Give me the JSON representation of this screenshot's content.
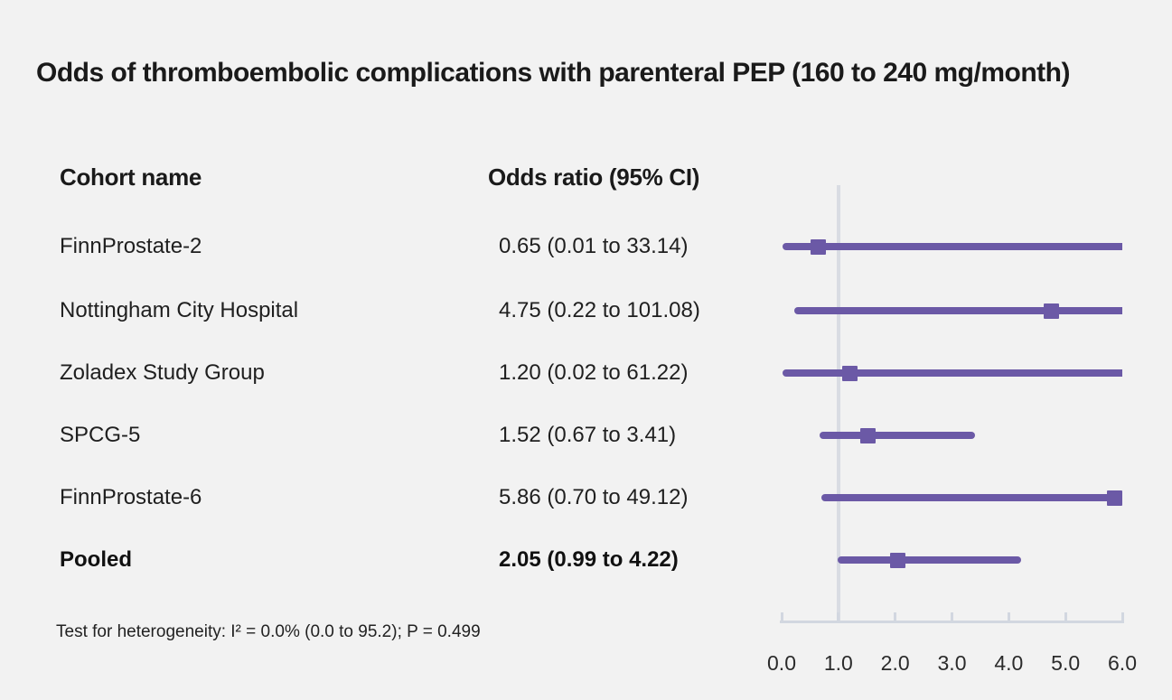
{
  "title": "Odds of thromboembolic complications with parenteral PEP (160 to 240 mg/month)",
  "table": {
    "col1_header": "Cohort name",
    "col2_header": "Odds ratio (95% CI)"
  },
  "footnote": "Test for heterogeneity: I² = 0.0% (0.0 to 95.2); P = 0.499",
  "colors": {
    "background": "#f2f2f2",
    "text": "#1a1a1a",
    "marker_purple": "#6b59a6",
    "reference_line": "#d9dce3",
    "axis_line": "#d2d7e0"
  },
  "chart_data": {
    "type": "scatter",
    "subtype": "forest-plot",
    "xlabel": "",
    "ylabel": "",
    "xlim": [
      0.0,
      6.0
    ],
    "x_tick_labels": [
      "0.0",
      "1.0",
      "2.0",
      "3.0",
      "4.0",
      "5.0",
      "6.0"
    ],
    "x_tick_values": [
      0,
      1,
      2,
      3,
      4,
      5,
      6
    ],
    "reference_line_x": 1.0,
    "grid": false,
    "legend": "none",
    "rows": [
      {
        "cohort": "FinnProstate-2",
        "label": "0.65 (0.01 to 33.14)",
        "or": 0.65,
        "ci_low": 0.01,
        "ci_high": 33.14,
        "bold": false
      },
      {
        "cohort": "Nottingham City Hospital",
        "label": "4.75 (0.22 to 101.08)",
        "or": 4.75,
        "ci_low": 0.22,
        "ci_high": 101.08,
        "bold": false
      },
      {
        "cohort": "Zoladex Study Group",
        "label": "1.20 (0.02 to 61.22)",
        "or": 1.2,
        "ci_low": 0.02,
        "ci_high": 61.22,
        "bold": false
      },
      {
        "cohort": "SPCG-5",
        "label": "1.52 (0.67 to 3.41)",
        "or": 1.52,
        "ci_low": 0.67,
        "ci_high": 3.41,
        "bold": false
      },
      {
        "cohort": "FinnProstate-6",
        "label": "5.86 (0.70 to 49.12)",
        "or": 5.86,
        "ci_low": 0.7,
        "ci_high": 49.12,
        "bold": false
      },
      {
        "cohort": "Pooled",
        "label": "2.05 (0.99 to 4.22)",
        "or": 2.05,
        "ci_low": 0.99,
        "ci_high": 4.22,
        "bold": true
      }
    ]
  }
}
